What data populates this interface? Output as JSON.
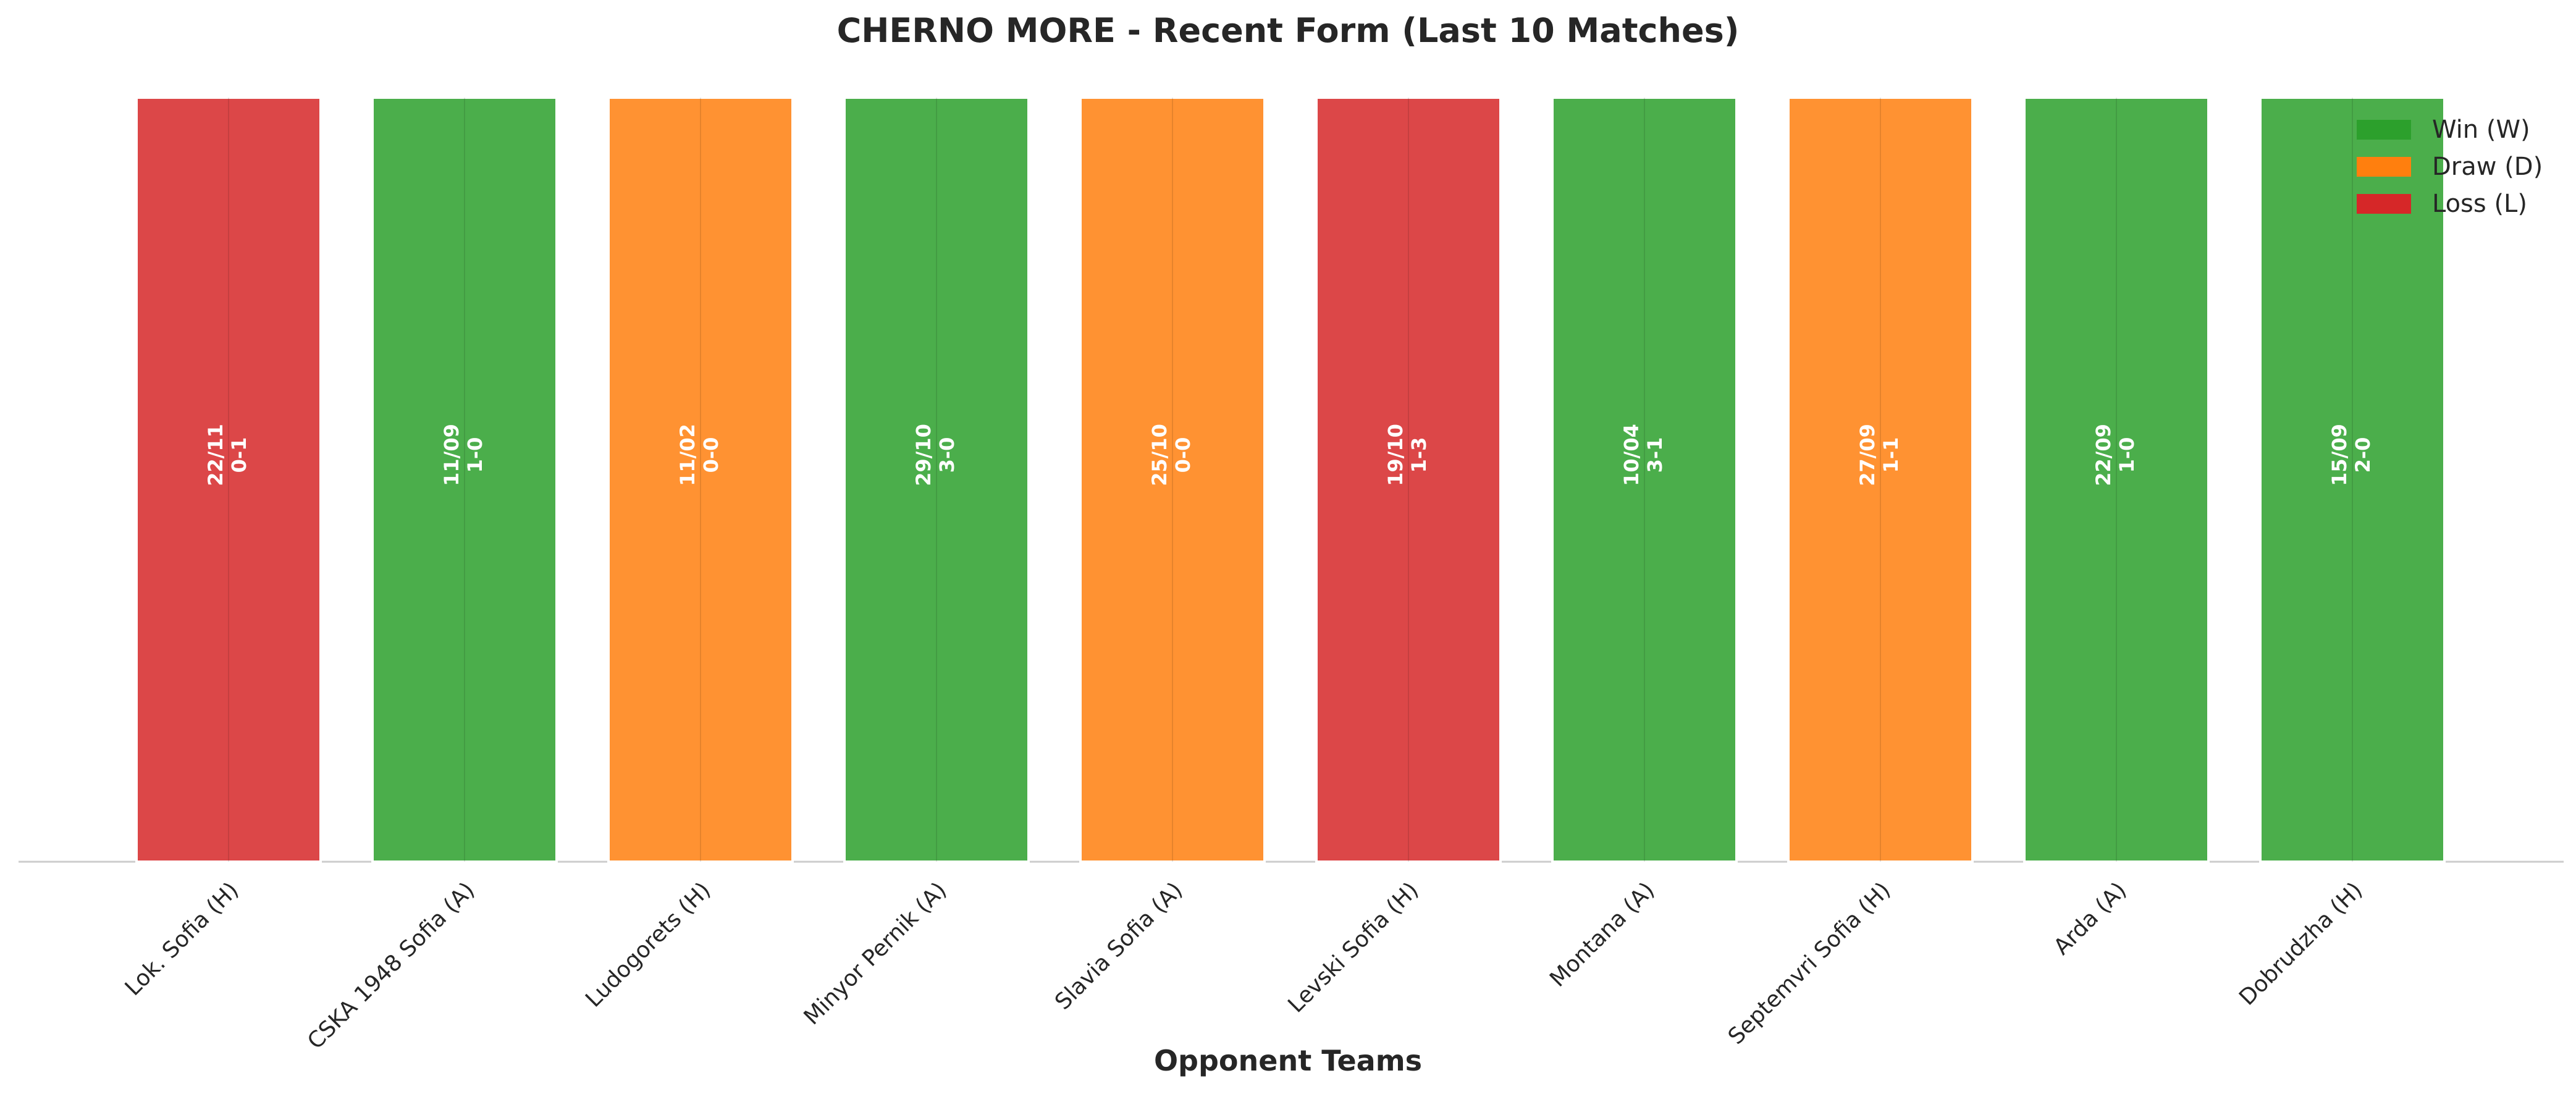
{
  "chart_data": {
    "type": "bar",
    "title": "CHERNO MORE - Recent Form (Last 10 Matches)",
    "xlabel": "Opponent Teams",
    "ylabel": "",
    "ylim": [
      0,
      1
    ],
    "grid": false,
    "legend_position": "top-right",
    "categories": [
      "Lok. Sofia (H)",
      "CSKA 1948 Sofia (A)",
      "Ludogorets (H)",
      "Minyor Pernik (A)",
      "Slavia Sofia (A)",
      "Levski Sofia (H)",
      "Montana (A)",
      "Septemvri Sofia (H)",
      "Arda (A)",
      "Dobrudzha (H)"
    ],
    "values": [
      1,
      1,
      1,
      1,
      1,
      1,
      1,
      1,
      1,
      1
    ],
    "results": [
      "L",
      "W",
      "D",
      "W",
      "D",
      "L",
      "W",
      "D",
      "W",
      "W"
    ],
    "dates": [
      "22/11",
      "11/09",
      "11/02",
      "29/10",
      "25/10",
      "19/10",
      "10/04",
      "27/09",
      "22/09",
      "15/09"
    ],
    "scores": [
      "0-1",
      "1-0",
      "0-0",
      "3-0",
      "0-0",
      "1-3",
      "3-1",
      "1-1",
      "1-0",
      "2-0"
    ],
    "legend": [
      {
        "key": "W",
        "label": "Win (W)"
      },
      {
        "key": "D",
        "label": "Draw (D)"
      },
      {
        "key": "L",
        "label": "Loss (L)"
      }
    ],
    "colors": {
      "W": "#2ca02c",
      "D": "#ff7f0e",
      "L": "#d62728"
    },
    "bar_opacity": 0.85
  }
}
